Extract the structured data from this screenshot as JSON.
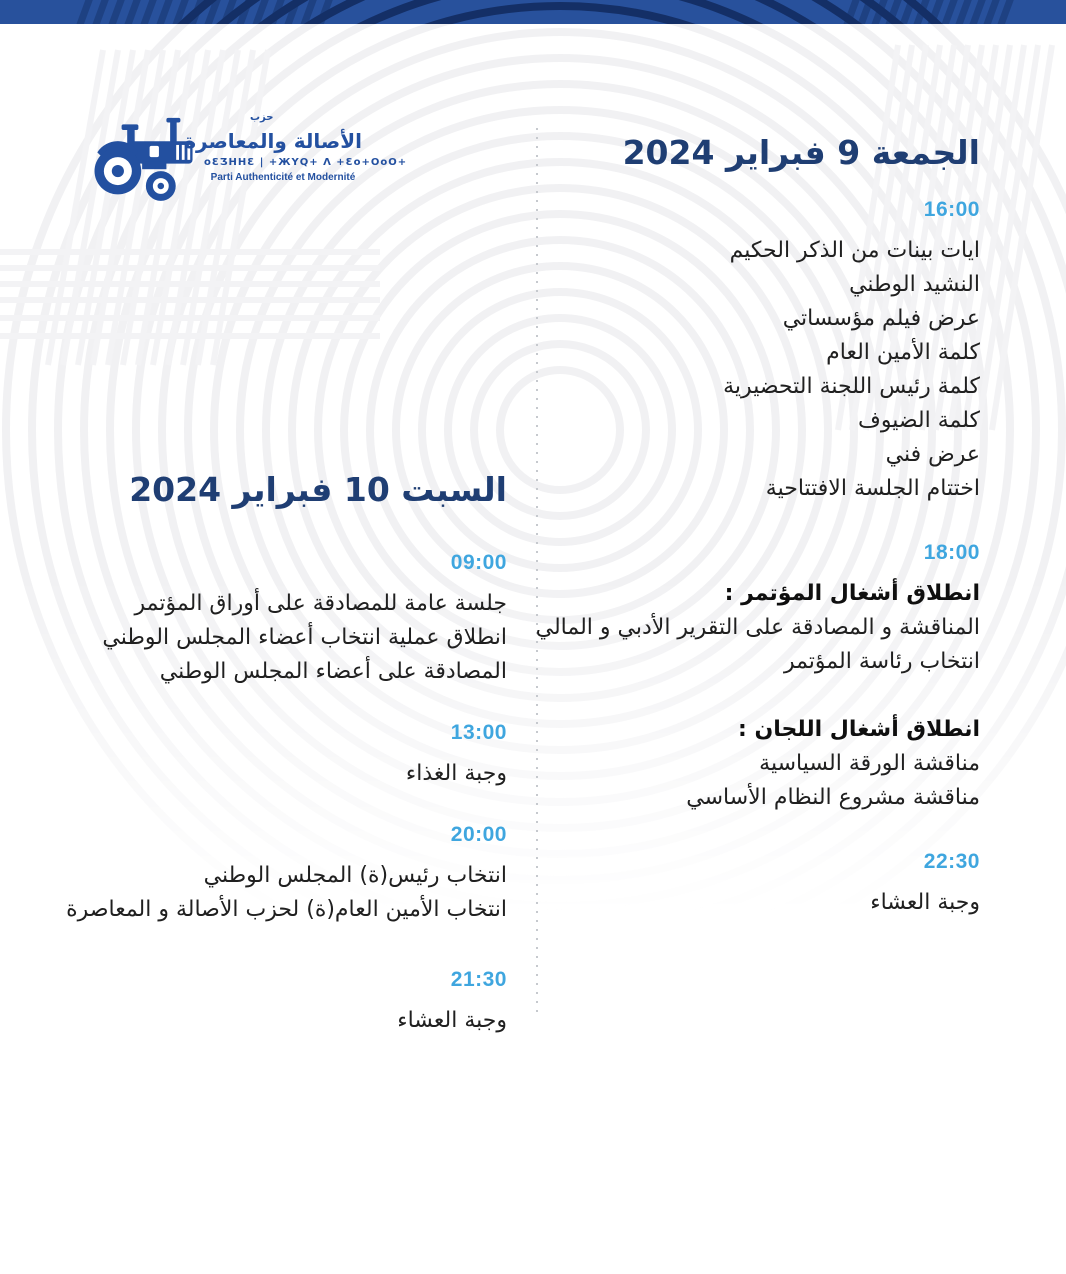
{
  "colors": {
    "band_blue": "#28519C",
    "band_stripe": "#1E4182",
    "band_arc": "#142F66",
    "heading_navy": "#1F3E73",
    "time_blue": "#3FA6DF",
    "body_text": "#202020",
    "logo_blue": "#2350A0",
    "watermark_gray": "#F1F1F3",
    "divider_dot_gray": "#C6C9CE"
  },
  "logo": {
    "small_word": "حزب",
    "arabic_title": "الأصالة والمعاصرة",
    "tifinagh_line": "oƐƷHHƐ | +ЖYQ+ Λ +Ɛo+OoO+",
    "french_line": "Parti Authenticité et Modernité"
  },
  "days": [
    {
      "key": "friday",
      "title": "الجمعة 9 فبراير 2024",
      "blocks": [
        {
          "time": "16:00",
          "groups": [
            {
              "lines": [
                {
                  "text": "ايات بينات من الذكر الحكيم",
                  "bold": false
                },
                {
                  "text": "النشيد الوطني",
                  "bold": false
                },
                {
                  "text": "عرض فيلم مؤسساتي",
                  "bold": false
                },
                {
                  "text": "كلمة الأمين العام",
                  "bold": false
                },
                {
                  "text": "كلمة رئيس اللجنة التحضيرية",
                  "bold": false
                },
                {
                  "text": "كلمة الضيوف",
                  "bold": false
                },
                {
                  "text": "عرض فني",
                  "bold": false
                },
                {
                  "text": "اختتام الجلسة الافتتاحية",
                  "bold": false
                }
              ]
            }
          ]
        },
        {
          "time": "18:00",
          "groups": [
            {
              "lines": [
                {
                  "text": "انطلاق أشغال المؤتمر :",
                  "bold": true
                },
                {
                  "text": "المناقشة و المصادقة على التقرير الأدبي و المالي",
                  "bold": false
                },
                {
                  "text": "انتخاب رئاسة المؤتمر",
                  "bold": false
                }
              ]
            },
            {
              "lines": [
                {
                  "text": "انطلاق أشغال اللجان :",
                  "bold": true
                },
                {
                  "text": "مناقشة الورقة السياسية",
                  "bold": false
                },
                {
                  "text": "مناقشة مشروع النظام الأساسي",
                  "bold": false
                }
              ]
            }
          ]
        },
        {
          "time": "22:30",
          "groups": [
            {
              "lines": [
                {
                  "text": "وجبة العشاء",
                  "bold": false
                }
              ]
            }
          ]
        }
      ]
    },
    {
      "key": "saturday",
      "title": "السبت 10 فبراير 2024",
      "blocks": [
        {
          "time": "09:00",
          "groups": [
            {
              "lines": [
                {
                  "text": "جلسة عامة للمصادقة على أوراق المؤتمر",
                  "bold": false
                },
                {
                  "text": "انطلاق عملية انتخاب أعضاء المجلس الوطني",
                  "bold": false
                },
                {
                  "text": "المصادقة على أعضاء المجلس الوطني",
                  "bold": false
                }
              ]
            }
          ]
        },
        {
          "time": "13:00",
          "groups": [
            {
              "lines": [
                {
                  "text": "وجبة الغذاء",
                  "bold": false
                }
              ]
            }
          ]
        },
        {
          "time": "20:00",
          "groups": [
            {
              "lines": [
                {
                  "text": "انتخاب رئيس(ة) المجلس الوطني",
                  "bold": false
                },
                {
                  "text": "انتخاب الأمين العام(ة) لحزب الأصالة و المعاصرة",
                  "bold": false
                }
              ]
            }
          ]
        },
        {
          "time": "21:30",
          "groups": [
            {
              "lines": [
                {
                  "text": "وجبة العشاء",
                  "bold": false
                }
              ]
            }
          ]
        }
      ]
    }
  ]
}
